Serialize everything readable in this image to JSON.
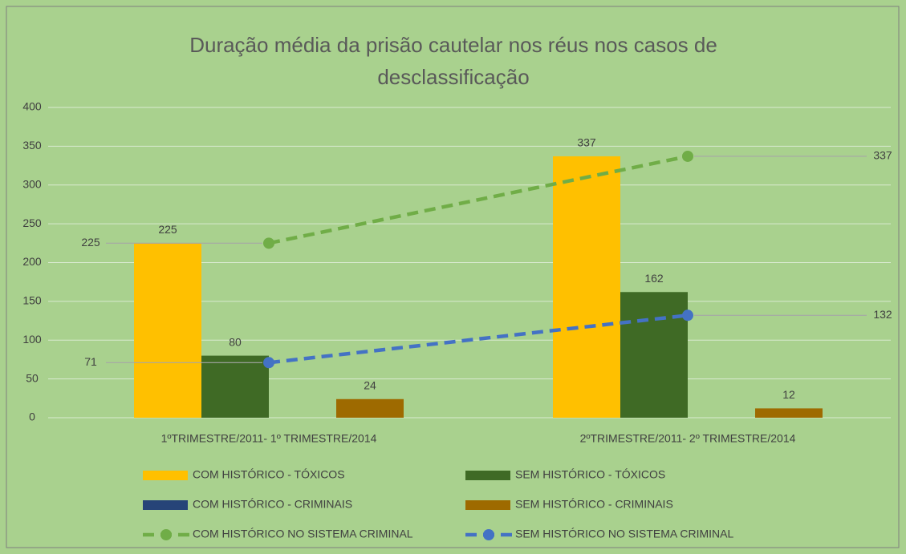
{
  "chart_data": {
    "type": "bar",
    "title": "Duração média da prisão cautelar nos réus nos casos de desclassificação",
    "categories": [
      "1ºTRIMESTRE/2011- 1º TRIMESTRE/2014",
      "2ºTRIMESTRE/2011- 2º TRIMESTRE/2014"
    ],
    "series": [
      {
        "name": "COM HISTÓRICO - TÓXICOS",
        "type": "bar",
        "color": "#ffc000",
        "values": [
          225,
          337
        ]
      },
      {
        "name": "SEM HISTÓRICO - TÓXICOS",
        "type": "bar",
        "color": "#3f6a25",
        "values": [
          80,
          162
        ]
      },
      {
        "name": "COM HISTÓRICO - CRIMINAIS",
        "type": "bar",
        "color": "#264478",
        "values": [
          null,
          null
        ]
      },
      {
        "name": "SEM HISTÓRICO - CRIMINAIS",
        "type": "bar",
        "color": "#9e6a00",
        "values": [
          24,
          12
        ]
      },
      {
        "name": "COM HISTÓRICO NO SISTEMA CRIMINAL",
        "type": "line",
        "color": "#70ad47",
        "values": [
          225,
          337
        ]
      },
      {
        "name": "SEM HISTÓRICO NO SISTEMA CRIMINAL",
        "type": "line",
        "color": "#4472c4",
        "values": [
          71,
          132
        ]
      }
    ],
    "ylim": [
      0,
      400
    ],
    "yticks": [
      0,
      50,
      100,
      150,
      200,
      250,
      300,
      350,
      400
    ],
    "grid": true
  }
}
